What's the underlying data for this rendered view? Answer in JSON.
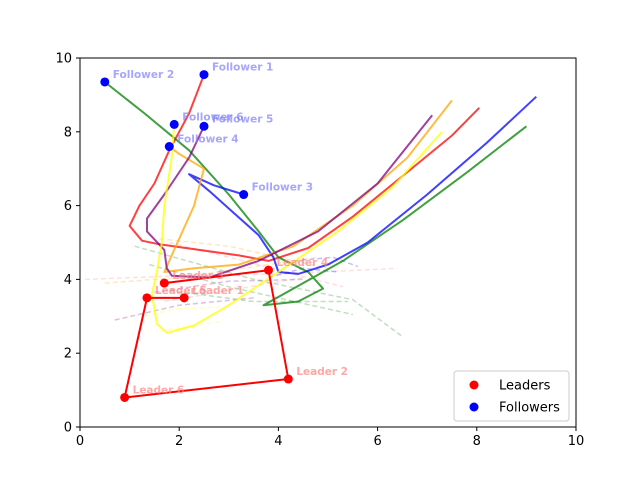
{
  "chart_data": {
    "type": "scatter",
    "title": "",
    "xlabel": "",
    "ylabel": "",
    "xlim": [
      0,
      10
    ],
    "ylim": [
      0,
      10
    ],
    "x_ticks": [
      0,
      2,
      4,
      6,
      8,
      10
    ],
    "y_ticks": [
      0,
      2,
      4,
      6,
      8,
      10
    ],
    "grid": false,
    "legend_placement": "bottom-right",
    "legend": [
      {
        "name": "Leaders",
        "color": "#ff0000"
      },
      {
        "name": "Followers",
        "color": "#0000ff"
      }
    ],
    "leaders": [
      {
        "name": "Leader 1",
        "x": 2.1,
        "y": 3.5
      },
      {
        "name": "Leader 2",
        "x": 4.2,
        "y": 1.3
      },
      {
        "name": "Leader 3",
        "x": 1.7,
        "y": 3.9
      },
      {
        "name": "Leader 4",
        "x": 3.8,
        "y": 4.25
      },
      {
        "name": "Leader 5",
        "x": 1.35,
        "y": 3.5
      },
      {
        "name": "Leader 6",
        "x": 0.9,
        "y": 0.8
      }
    ],
    "followers": [
      {
        "name": "Follower 1",
        "x": 2.5,
        "y": 9.55
      },
      {
        "name": "Follower 2",
        "x": 0.5,
        "y": 9.35
      },
      {
        "name": "Follower 3",
        "x": 3.3,
        "y": 6.3
      },
      {
        "name": "Follower 4",
        "x": 1.8,
        "y": 7.6
      },
      {
        "name": "Follower 5",
        "x": 2.5,
        "y": 8.15
      },
      {
        "name": "Follower 6",
        "x": 1.9,
        "y": 8.2
      }
    ],
    "leader_path": [
      [
        1.7,
        3.9
      ],
      [
        3.8,
        4.25
      ],
      [
        4.2,
        1.3
      ],
      [
        0.9,
        0.8
      ],
      [
        1.35,
        3.5
      ],
      [
        2.1,
        3.5
      ]
    ],
    "follower_paths": [
      {
        "color": "#ff0000",
        "points": [
          [
            2.5,
            9.55
          ],
          [
            2.2,
            8.5
          ],
          [
            1.8,
            7.5
          ],
          [
            1.5,
            6.6
          ],
          [
            1.2,
            6.0
          ],
          [
            1.0,
            5.45
          ],
          [
            1.25,
            5.05
          ],
          [
            1.6,
            4.95
          ],
          [
            2.4,
            4.8
          ],
          [
            3.2,
            4.65
          ],
          [
            3.8,
            4.5
          ],
          [
            4.6,
            4.85
          ],
          [
            5.5,
            5.7
          ],
          [
            6.5,
            6.8
          ],
          [
            7.5,
            7.9
          ],
          [
            8.05,
            8.65
          ]
        ]
      },
      {
        "color": "#008000",
        "points": [
          [
            0.5,
            9.35
          ],
          [
            1.3,
            8.5
          ],
          [
            2.2,
            7.5
          ],
          [
            3.0,
            6.3
          ],
          [
            3.6,
            5.3
          ],
          [
            4.0,
            4.6
          ],
          [
            4.6,
            4.2
          ],
          [
            4.9,
            3.75
          ],
          [
            4.4,
            3.4
          ],
          [
            3.7,
            3.3
          ],
          [
            4.3,
            3.75
          ],
          [
            5.3,
            4.5
          ],
          [
            6.5,
            5.6
          ],
          [
            7.8,
            6.9
          ],
          [
            9.0,
            8.15
          ]
        ]
      },
      {
        "color": "#0000ff",
        "points": [
          [
            3.3,
            6.3
          ],
          [
            2.7,
            6.55
          ],
          [
            2.2,
            6.85
          ],
          [
            2.6,
            6.4
          ],
          [
            3.1,
            5.8
          ],
          [
            3.6,
            5.2
          ],
          [
            3.9,
            4.6
          ],
          [
            4.0,
            4.2
          ],
          [
            4.4,
            4.15
          ],
          [
            5.0,
            4.4
          ],
          [
            5.8,
            5.0
          ],
          [
            7.0,
            6.3
          ],
          [
            8.2,
            7.7
          ],
          [
            9.2,
            8.95
          ]
        ]
      },
      {
        "color": "#ffa500",
        "points": [
          [
            1.8,
            7.6
          ],
          [
            2.0,
            7.4
          ],
          [
            2.5,
            7.0
          ],
          [
            2.3,
            6.0
          ],
          [
            1.9,
            4.8
          ],
          [
            1.7,
            4.2
          ],
          [
            2.3,
            4.3
          ],
          [
            3.2,
            4.4
          ],
          [
            4.3,
            4.9
          ],
          [
            5.5,
            6.0
          ],
          [
            6.6,
            7.3
          ],
          [
            7.5,
            8.85
          ]
        ]
      },
      {
        "color": "#800080",
        "points": [
          [
            2.5,
            8.15
          ],
          [
            2.2,
            7.3
          ],
          [
            1.7,
            6.3
          ],
          [
            1.35,
            5.65
          ],
          [
            1.35,
            5.3
          ],
          [
            1.7,
            4.8
          ],
          [
            1.75,
            4.3
          ],
          [
            1.85,
            4.1
          ],
          [
            2.6,
            4.05
          ],
          [
            3.6,
            4.5
          ],
          [
            4.8,
            5.3
          ],
          [
            6.0,
            6.6
          ],
          [
            7.1,
            8.45
          ]
        ]
      },
      {
        "color": "#ffff00",
        "points": [
          [
            1.9,
            8.2
          ],
          [
            1.85,
            7.3
          ],
          [
            1.7,
            6.0
          ],
          [
            1.65,
            5.0
          ],
          [
            1.55,
            4.2
          ],
          [
            1.45,
            3.6
          ],
          [
            1.55,
            2.8
          ],
          [
            1.75,
            2.55
          ],
          [
            2.3,
            2.75
          ],
          [
            3.0,
            3.3
          ],
          [
            4.0,
            4.2
          ],
          [
            5.2,
            5.3
          ],
          [
            6.3,
            6.5
          ],
          [
            7.3,
            8.0
          ]
        ]
      }
    ],
    "background_dashes": [
      {
        "color": "#008000",
        "points": [
          [
            1.1,
            4.9
          ],
          [
            3.5,
            4.0
          ],
          [
            5.5,
            3.45
          ],
          [
            6.5,
            2.45
          ]
        ]
      },
      {
        "color": "#008000",
        "points": [
          [
            1.4,
            4.4
          ],
          [
            3.0,
            3.8
          ],
          [
            5.5,
            3.05
          ]
        ]
      },
      {
        "color": "#008000",
        "points": [
          [
            1.8,
            3.7
          ],
          [
            3.5,
            3.4
          ],
          [
            5.4,
            3.4
          ]
        ]
      },
      {
        "color": "#ff8080",
        "points": [
          [
            0.1,
            4.0
          ],
          [
            2.0,
            4.1
          ],
          [
            4.0,
            4.15
          ],
          [
            6.4,
            4.3
          ]
        ]
      },
      {
        "color": "#ff8080",
        "points": [
          [
            1.8,
            5.0
          ],
          [
            3.3,
            4.5
          ],
          [
            5.3,
            3.8
          ]
        ]
      },
      {
        "color": "#ff8080",
        "points": [
          [
            1.7,
            3.4
          ],
          [
            3.0,
            3.7
          ],
          [
            4.5,
            4.05
          ]
        ]
      },
      {
        "color": "#ffa500",
        "points": [
          [
            0.5,
            3.9
          ],
          [
            2.0,
            4.05
          ],
          [
            4.8,
            4.6
          ]
        ]
      },
      {
        "color": "#ffa500",
        "points": [
          [
            1.6,
            5.1
          ],
          [
            3.0,
            4.9
          ],
          [
            5.0,
            4.3
          ]
        ]
      },
      {
        "color": "#800080",
        "points": [
          [
            0.7,
            2.9
          ],
          [
            2.0,
            3.3
          ],
          [
            3.5,
            3.5
          ]
        ]
      },
      {
        "color": "#800080",
        "points": [
          [
            1.5,
            3.65
          ],
          [
            3.0,
            3.95
          ],
          [
            4.5,
            4.0
          ]
        ]
      },
      {
        "color": "#0000ff",
        "points": [
          [
            4.3,
            4.5
          ],
          [
            5.1,
            4.6
          ],
          [
            5.6,
            4.35
          ]
        ]
      },
      {
        "color": "#0000ff",
        "points": [
          [
            3.8,
            4.05
          ],
          [
            4.5,
            4.3
          ],
          [
            5.2,
            4.2
          ]
        ]
      },
      {
        "color": "#ffff00",
        "points": [
          [
            1.3,
            3.0
          ],
          [
            1.9,
            3.2
          ],
          [
            2.8,
            3.25
          ]
        ]
      },
      {
        "color": "#ffff00",
        "points": [
          [
            1.6,
            2.6
          ],
          [
            2.3,
            2.75
          ],
          [
            2.8,
            2.85
          ]
        ]
      }
    ]
  }
}
